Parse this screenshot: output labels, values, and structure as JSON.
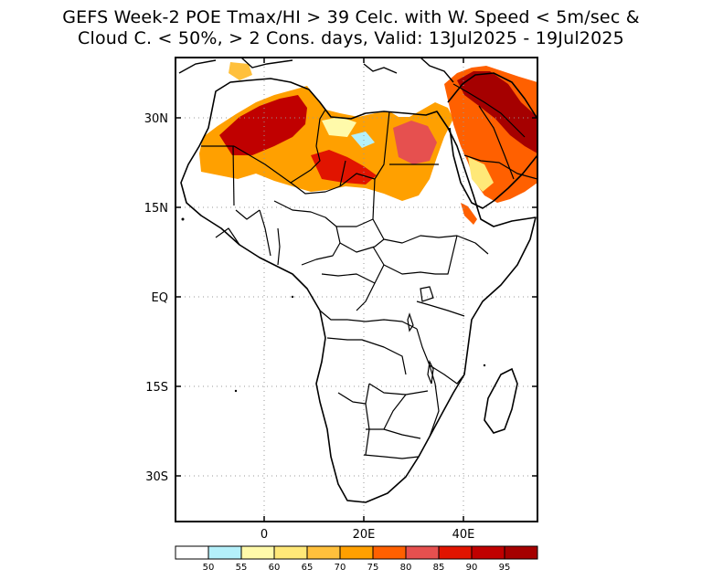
{
  "title": {
    "line1": "GEFS Week-2 POE Tmax/HI > 39 Celc. with W. Speed < 5m/sec &",
    "line2": "Cloud C. < 50%, > 2 Cons. days, Valid: 13Jul2025 - 19Jul2025"
  },
  "map": {
    "lat_ticks": [
      {
        "value": 30,
        "label": "30N"
      },
      {
        "value": 15,
        "label": "15N"
      },
      {
        "value": 0,
        "label": "EQ"
      },
      {
        "value": -15,
        "label": "15S"
      },
      {
        "value": -30,
        "label": "30S"
      }
    ],
    "lon_ticks": [
      {
        "value": 0,
        "label": "0"
      },
      {
        "value": 20,
        "label": "20E"
      },
      {
        "value": 40,
        "label": "40E"
      }
    ],
    "lon_range": [
      -18,
      55
    ],
    "lat_range": [
      -38,
      40
    ]
  },
  "colorbar": {
    "labels": [
      "50",
      "55",
      "60",
      "65",
      "70",
      "75",
      "80",
      "85",
      "90",
      "95"
    ],
    "colors": [
      "#ffffff",
      "#b4f0fa",
      "#fffaaa",
      "#ffe878",
      "#ffc03c",
      "#ffa000",
      "#ff6000",
      "#e6504f",
      "#e11400",
      "#c00000",
      "#a50000"
    ]
  }
}
